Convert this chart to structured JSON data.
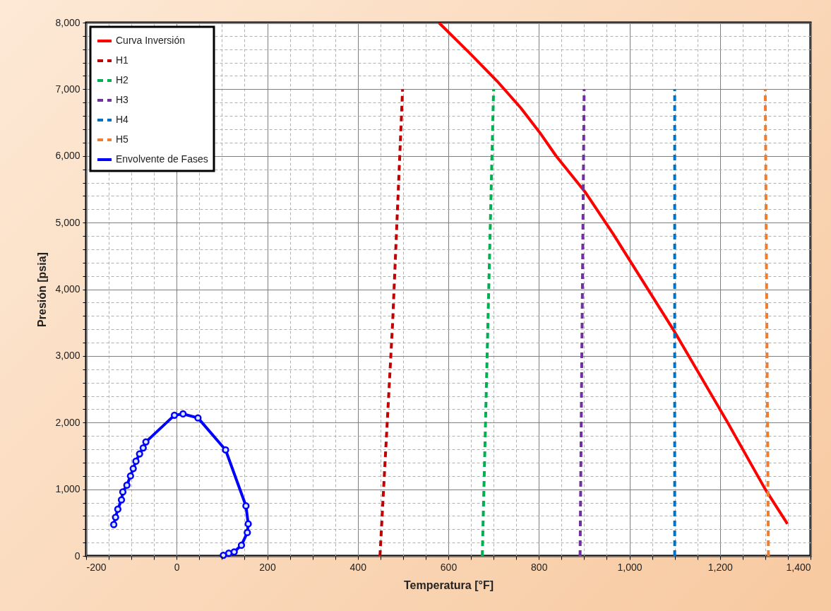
{
  "chart_data": {
    "type": "line",
    "xlabel": "Temperatura [°F]",
    "ylabel": "Presión [psia]",
    "xlim": [
      -200,
      1400
    ],
    "ylim": [
      0,
      8000
    ],
    "xticks": [
      -200,
      {
        "value": -150,
        "label": null
      },
      {
        "value": -100,
        "label": null
      },
      {
        "value": -50,
        "label": null
      },
      0,
      {
        "value": 50,
        "label": null
      },
      {
        "value": 100,
        "label": null
      },
      {
        "value": 150,
        "label": null
      },
      200,
      {
        "value": 250,
        "label": null
      },
      {
        "value": 300,
        "label": null
      },
      {
        "value": 350,
        "label": null
      },
      400,
      {
        "value": 450,
        "label": null
      },
      {
        "value": 500,
        "label": null
      },
      {
        "value": 550,
        "label": null
      },
      600,
      {
        "value": 650,
        "label": null
      },
      {
        "value": 700,
        "label": null
      },
      {
        "value": 750,
        "label": null
      },
      800,
      {
        "value": 850,
        "label": null
      },
      {
        "value": 900,
        "label": null
      },
      {
        "value": 950,
        "label": null
      },
      {
        "value": 1000,
        "label": "1,000"
      },
      {
        "value": 1050,
        "label": null
      },
      {
        "value": 1100,
        "label": null
      },
      {
        "value": 1150,
        "label": null
      },
      {
        "value": 1200,
        "label": "1,200"
      },
      {
        "value": 1250,
        "label": null
      },
      {
        "value": 1300,
        "label": null
      },
      {
        "value": 1350,
        "label": null
      },
      {
        "value": 1400,
        "label": "1,400"
      }
    ],
    "yticks": [
      0,
      {
        "value": 200,
        "label": null
      },
      {
        "value": 400,
        "label": null
      },
      {
        "value": 600,
        "label": null
      },
      {
        "value": 800,
        "label": null
      },
      {
        "value": 1000,
        "label": "1,000"
      },
      {
        "value": 1200,
        "label": null
      },
      {
        "value": 1400,
        "label": null
      },
      {
        "value": 1600,
        "label": null
      },
      {
        "value": 1800,
        "label": null
      },
      {
        "value": 2000,
        "label": "2,000"
      },
      {
        "value": 2200,
        "label": null
      },
      {
        "value": 2400,
        "label": null
      },
      {
        "value": 2600,
        "label": null
      },
      {
        "value": 2800,
        "label": null
      },
      {
        "value": 3000,
        "label": "3,000"
      },
      {
        "value": 3200,
        "label": null
      },
      {
        "value": 3400,
        "label": null
      },
      {
        "value": 3600,
        "label": null
      },
      {
        "value": 3800,
        "label": null
      },
      {
        "value": 4000,
        "label": "4,000"
      },
      {
        "value": 4200,
        "label": null
      },
      {
        "value": 4400,
        "label": null
      },
      {
        "value": 4600,
        "label": null
      },
      {
        "value": 4800,
        "label": null
      },
      {
        "value": 5000,
        "label": "5,000"
      },
      {
        "value": 5200,
        "label": null
      },
      {
        "value": 5400,
        "label": null
      },
      {
        "value": 5600,
        "label": null
      },
      {
        "value": 5800,
        "label": null
      },
      {
        "value": 6000,
        "label": "6,000"
      },
      {
        "value": 6200,
        "label": null
      },
      {
        "value": 6400,
        "label": null
      },
      {
        "value": 6600,
        "label": null
      },
      {
        "value": 6800,
        "label": null
      },
      {
        "value": 7000,
        "label": "7,000"
      },
      {
        "value": 7200,
        "label": null
      },
      {
        "value": 7400,
        "label": null
      },
      {
        "value": 7600,
        "label": null
      },
      {
        "value": 7800,
        "label": null
      },
      {
        "value": 8000,
        "label": "8,000"
      }
    ],
    "grid": true,
    "legend": "top left",
    "series": [
      {
        "name": "Curva Inversión",
        "color": "#ff0000",
        "line_style": "solid",
        "x": [
          579,
          649,
          708,
          760,
          802,
          838,
          902,
          964,
          1100,
          1217,
          1300,
          1349
        ],
        "values": [
          8000,
          7530,
          7120,
          6720,
          6350,
          6000,
          5460,
          4830,
          3360,
          2000,
          1000,
          480
        ]
      },
      {
        "name": "H1",
        "color": "#c00000",
        "line_style": "dashed",
        "x": [
          449,
          477,
          499
        ],
        "values": [
          0,
          3500,
          7000
        ]
      },
      {
        "name": "H2",
        "color": "#00b050",
        "line_style": "dashed",
        "x": [
          675,
          700
        ],
        "values": [
          0,
          7000
        ]
      },
      {
        "name": "H3",
        "color": "#7030a0",
        "line_style": "dashed",
        "x": [
          891,
          900
        ],
        "values": [
          0,
          7000
        ]
      },
      {
        "name": "H4",
        "color": "#0070c0",
        "line_style": "dashed",
        "x": [
          1100,
          1100
        ],
        "values": [
          0,
          7000
        ]
      },
      {
        "name": "H5",
        "color": "#ed7d31",
        "line_style": "dashed",
        "x": [
          1307,
          1300
        ],
        "values": [
          0,
          7000
        ]
      },
      {
        "name": "Envolvente de Fases",
        "color": "#0000ff",
        "line_style": "solid",
        "marker": "circle",
        "x": [
          -139,
          -135,
          -130,
          -122,
          -119,
          -110,
          -102,
          -96,
          -90,
          -82,
          -74,
          -68,
          -5,
          14,
          47,
          108,
          153,
          158,
          156,
          143,
          127,
          115,
          103
        ],
        "values": [
          470,
          580,
          700,
          840,
          960,
          1060,
          1200,
          1310,
          1420,
          1530,
          1620,
          1710,
          2110,
          2130,
          2070,
          1590,
          750,
          480,
          350,
          160,
          60,
          40,
          10
        ]
      }
    ]
  }
}
